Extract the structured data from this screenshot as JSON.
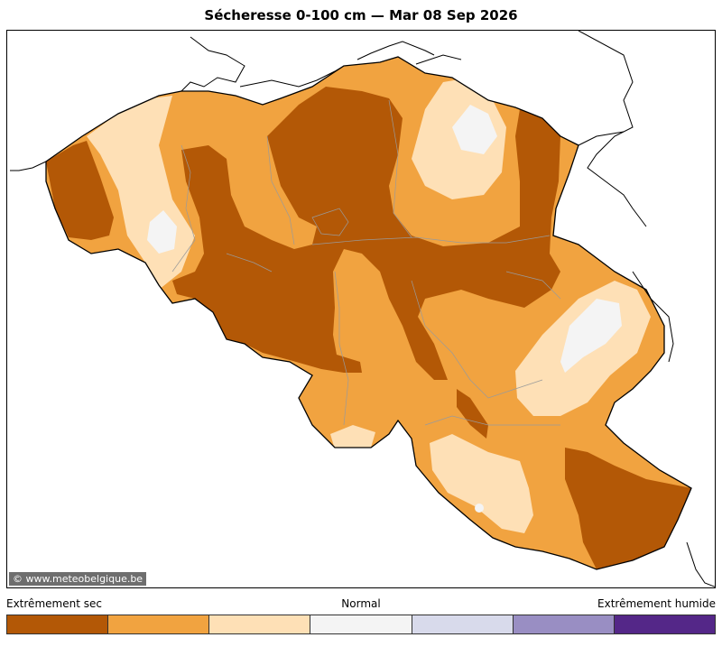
{
  "title": "Sécheresse 0-100 cm  —  Mar 08 Sep 2026",
  "credit": "© www.meteobelgique.be",
  "legend": {
    "left_label": "Extrêmement sec",
    "mid_label": "Normal",
    "right_label": "Extrêmement humide",
    "classes": [
      {
        "color": "#b35806"
      },
      {
        "color": "#f1a340"
      },
      {
        "color": "#fee0b6"
      },
      {
        "color": "#f4f4f4"
      },
      {
        "color": "#d8daeb"
      },
      {
        "color": "#998ec3"
      },
      {
        "color": "#542788"
      }
    ]
  }
}
